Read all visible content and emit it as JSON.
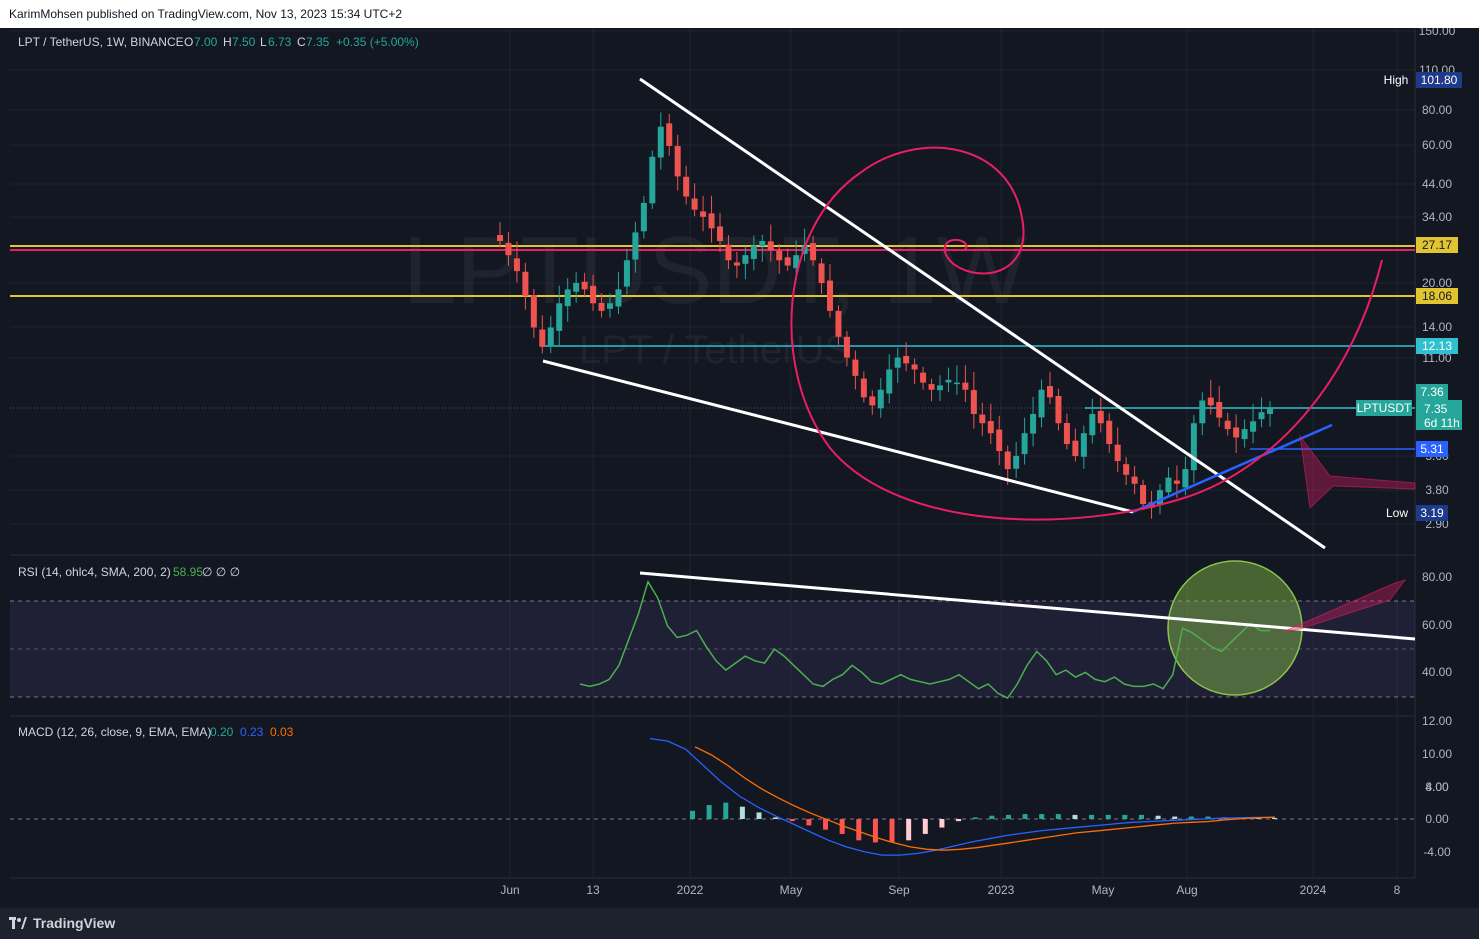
{
  "header": {
    "published": "KarimMohsen published on TradingView.com, Nov 13, 2023 15:34 UTC+2"
  },
  "footer": {
    "brand": "TradingView"
  },
  "legend": {
    "symbol": "LPT / TetherUS, 1W, BINANCE",
    "o_label": "O",
    "o": "7.00",
    "h_label": "H",
    "h": "7.50",
    "l_label": "L",
    "l": "6.73",
    "c_label": "C",
    "c": "7.35",
    "change": "+0.35 (+5.00%)"
  },
  "watermark": {
    "line1": "LPTUSDT, 1W",
    "line2": "LPT / TetherUS"
  },
  "rsi": {
    "label": "RSI (14, ohlc4, SMA, 200, 2)",
    "value": "58.95",
    "extra": "∅ ∅ ∅"
  },
  "macd": {
    "label": "MACD (12, 26, close, 9, EMA, EMA)",
    "v1": "0.20",
    "v2": "0.23",
    "v3": "0.03"
  },
  "price_axis": [
    "150.00",
    "110.00",
    "80.00",
    "60.00",
    "44.00",
    "34.00",
    "20.00",
    "14.00",
    "11.00",
    "5.00",
    "3.80",
    "2.90"
  ],
  "rsi_axis": [
    "80.00",
    "60.00",
    "40.00"
  ],
  "macd_axis": [
    "12.00",
    "10.00",
    "8.00",
    "4.00",
    "0.00",
    "-4.00"
  ],
  "time_axis": [
    "Jun",
    "13",
    "2022",
    "May",
    "Sep",
    "2023",
    "May",
    "Aug",
    "2024",
    "8"
  ],
  "badges": {
    "high_label": "High",
    "high": "101.80",
    "level_27": "27.17",
    "level_18": "18.06",
    "level_12": "12.13",
    "price_7_36": "7.36",
    "ticker": "LPTUSDT",
    "last": "7.35",
    "countdown": "6d 11h",
    "level_5": "5.31",
    "low_label": "Low",
    "low": "3.19"
  },
  "colors": {
    "background": "#131722",
    "up": "#26a69a",
    "down": "#ef5350",
    "yellow_level": "#e0c431",
    "cyan_level": "#30c0d0",
    "spiral": "#e91e63",
    "rsi_line": "#4caf50",
    "macd_line": "#2962ff",
    "signal_line": "#ff6d00"
  },
  "chart_data": [
    {
      "type": "candlestick",
      "title": "LPT / TetherUS, 1W, BINANCE",
      "scale": "log",
      "ylim": [
        2.6,
        150
      ],
      "last_bar": {
        "o": 7.0,
        "h": 7.5,
        "l": 6.73,
        "c": 7.35
      },
      "high": 101.8,
      "low": 3.19,
      "horizontal_levels": [
        27.17,
        18.06,
        12.13,
        7.36,
        5.31
      ],
      "candles": [
        28,
        25,
        22,
        18,
        14,
        12,
        14,
        17,
        19,
        20,
        19,
        17,
        16,
        17,
        19,
        24,
        30,
        38,
        55,
        70,
        60,
        47,
        40,
        36,
        34,
        31,
        28,
        24,
        23,
        25,
        27,
        28,
        26,
        24,
        23,
        25,
        27,
        24,
        20,
        16,
        13,
        11,
        9.5,
        8,
        7.5,
        8.5,
        10,
        11,
        10.5,
        10,
        9,
        8.5,
        8.8,
        9.2,
        9,
        8.5,
        7,
        6.5,
        6,
        5.2,
        4.5,
        5,
        6,
        7,
        8.5,
        8,
        6.5,
        5.5,
        5,
        6,
        7,
        6.5,
        5.5,
        4.8,
        4.3,
        4,
        3.4,
        3.3,
        3.8,
        4.2,
        4,
        4.5,
        6.5,
        7.8,
        7.5,
        6.8,
        6.2,
        5.8,
        6.2,
        6.6,
        7.1,
        7.35
      ]
    },
    {
      "type": "line",
      "title": "RSI (14, ohlc4, SMA, 200, 2)",
      "ylim": [
        25,
        85
      ],
      "values": [
        36,
        35,
        36,
        38,
        44,
        55,
        66,
        80,
        73,
        61,
        56,
        57,
        59,
        52,
        46,
        42,
        45,
        48,
        46,
        45,
        51,
        48,
        44,
        40,
        36,
        35,
        38,
        40,
        44,
        41,
        37,
        36,
        38,
        40,
        38,
        37,
        36,
        37,
        38,
        40,
        37,
        34,
        36,
        32,
        30,
        36,
        44,
        50,
        46,
        40,
        42,
        39,
        41,
        38,
        37,
        39,
        36,
        35,
        35,
        36,
        34,
        40,
        60,
        58,
        55,
        52,
        50,
        54,
        58,
        62,
        59,
        58.95
      ]
    },
    {
      "type": "bar",
      "title": "MACD (12, 26, close, 9, EMA, EMA)",
      "ylim": [
        -6,
        13
      ],
      "macd_values": [
        9.8,
        9.5,
        8.5,
        6.5,
        4.5,
        2.8,
        1.5,
        0.4,
        -0.6,
        -1.6,
        -2.6,
        -3.4,
        -4.0,
        -4.4,
        -4.4,
        -4.2,
        -3.8,
        -3.3,
        -2.8,
        -2.4,
        -2.0,
        -1.7,
        -1.4,
        -1.2,
        -1.0,
        -0.8,
        -0.6,
        -0.4,
        -0.3,
        -0.2,
        -0.1,
        0.0,
        0.1,
        0.15,
        0.2,
        0.2
      ],
      "signal_values": [
        8.8,
        7.8,
        6.5,
        5.0,
        3.7,
        2.6,
        1.6,
        0.7,
        -0.1,
        -0.9,
        -1.6,
        -2.3,
        -2.9,
        -3.4,
        -3.7,
        -3.8,
        -3.7,
        -3.5,
        -3.2,
        -2.9,
        -2.6,
        -2.3,
        -2.0,
        -1.7,
        -1.5,
        -1.3,
        -1.1,
        -0.9,
        -0.7,
        -0.5,
        -0.4,
        -0.3,
        -0.1,
        0.05,
        0.15,
        0.23
      ],
      "histogram_values": [
        1.0,
        1.7,
        2.0,
        1.5,
        0.8,
        0.2,
        -0.1,
        -0.3,
        -0.5,
        -0.7,
        -1.0,
        -1.1,
        -1.1,
        -1.0,
        -0.7,
        -0.4,
        -0.1,
        0.2,
        0.4,
        0.5,
        0.6,
        0.6,
        0.6,
        0.5,
        0.5,
        0.5,
        0.5,
        0.5,
        0.4,
        0.3,
        0.3,
        0.3,
        0.2,
        0.1,
        0.05,
        0.03
      ]
    }
  ]
}
